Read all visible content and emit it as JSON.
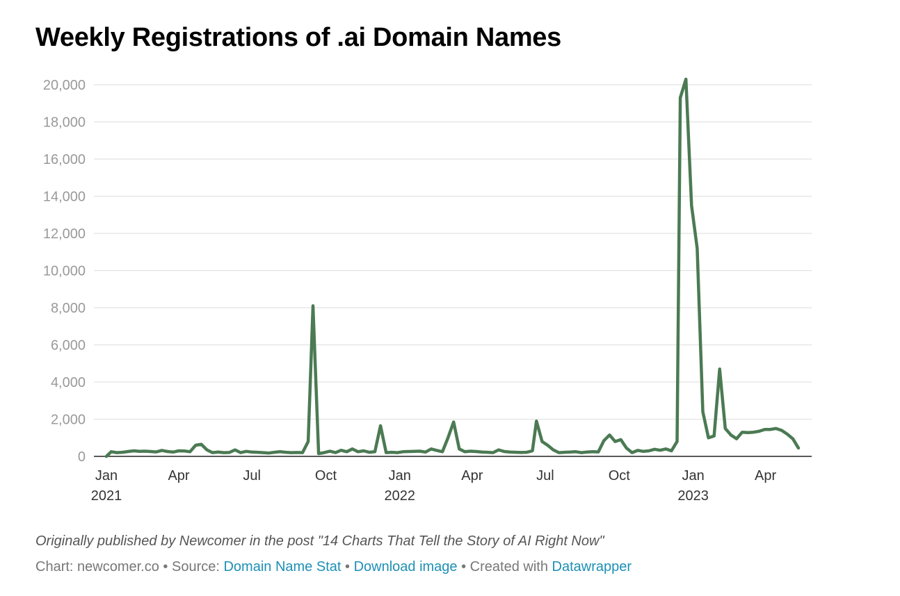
{
  "chart_data": {
    "type": "line",
    "title": "Weekly Registrations of .ai Domain Names",
    "xlabel": "",
    "ylabel": "",
    "ylim": [
      0,
      20000
    ],
    "grid": true,
    "line_color": "#4b7a53",
    "y_ticks": [
      {
        "value": 0,
        "label": "0"
      },
      {
        "value": 2000,
        "label": "2,000"
      },
      {
        "value": 4000,
        "label": "4,000"
      },
      {
        "value": 6000,
        "label": "6,000"
      },
      {
        "value": 8000,
        "label": "8,000"
      },
      {
        "value": 10000,
        "label": "10,000"
      },
      {
        "value": 12000,
        "label": "12,000"
      },
      {
        "value": 14000,
        "label": "14,000"
      },
      {
        "value": 16000,
        "label": "16,000"
      },
      {
        "value": 18000,
        "label": "18,000"
      },
      {
        "value": 20000,
        "label": "20,000"
      }
    ],
    "x_ticks": [
      {
        "date": "2021-01-01",
        "label": "Jan",
        "year": "2021"
      },
      {
        "date": "2021-04-01",
        "label": "Apr",
        "year": ""
      },
      {
        "date": "2021-07-01",
        "label": "Jul",
        "year": ""
      },
      {
        "date": "2021-10-01",
        "label": "Oct",
        "year": ""
      },
      {
        "date": "2022-01-01",
        "label": "Jan",
        "year": "2022"
      },
      {
        "date": "2022-04-01",
        "label": "Apr",
        "year": ""
      },
      {
        "date": "2022-07-01",
        "label": "Jul",
        "year": ""
      },
      {
        "date": "2022-10-01",
        "label": "Oct",
        "year": ""
      },
      {
        "date": "2023-01-01",
        "label": "Jan",
        "year": "2023"
      },
      {
        "date": "2023-04-01",
        "label": "Apr",
        "year": ""
      }
    ],
    "series": [
      {
        "points": [
          [
            "2021-01-01",
            0
          ],
          [
            "2021-01-07",
            250
          ],
          [
            "2021-01-14",
            200
          ],
          [
            "2021-01-21",
            220
          ],
          [
            "2021-01-28",
            260
          ],
          [
            "2021-02-04",
            300
          ],
          [
            "2021-02-11",
            270
          ],
          [
            "2021-02-18",
            280
          ],
          [
            "2021-02-25",
            260
          ],
          [
            "2021-03-04",
            240
          ],
          [
            "2021-03-11",
            320
          ],
          [
            "2021-03-18",
            260
          ],
          [
            "2021-03-25",
            230
          ],
          [
            "2021-04-01",
            300
          ],
          [
            "2021-04-08",
            290
          ],
          [
            "2021-04-15",
            250
          ],
          [
            "2021-04-22",
            600
          ],
          [
            "2021-04-29",
            650
          ],
          [
            "2021-05-06",
            350
          ],
          [
            "2021-05-13",
            200
          ],
          [
            "2021-05-20",
            230
          ],
          [
            "2021-05-27",
            200
          ],
          [
            "2021-06-03",
            210
          ],
          [
            "2021-06-10",
            350
          ],
          [
            "2021-06-17",
            200
          ],
          [
            "2021-06-24",
            270
          ],
          [
            "2021-07-01",
            230
          ],
          [
            "2021-07-08",
            220
          ],
          [
            "2021-07-15",
            200
          ],
          [
            "2021-07-22",
            180
          ],
          [
            "2021-07-29",
            220
          ],
          [
            "2021-08-05",
            250
          ],
          [
            "2021-08-12",
            220
          ],
          [
            "2021-08-19",
            200
          ],
          [
            "2021-08-26",
            210
          ],
          [
            "2021-09-02",
            200
          ],
          [
            "2021-09-09",
            800
          ],
          [
            "2021-09-15",
            8100
          ],
          [
            "2021-09-22",
            150
          ],
          [
            "2021-09-29",
            200
          ],
          [
            "2021-10-06",
            280
          ],
          [
            "2021-10-13",
            200
          ],
          [
            "2021-10-20",
            330
          ],
          [
            "2021-10-27",
            250
          ],
          [
            "2021-11-03",
            400
          ],
          [
            "2021-11-10",
            250
          ],
          [
            "2021-11-17",
            300
          ],
          [
            "2021-11-24",
            220
          ],
          [
            "2021-12-01",
            250
          ],
          [
            "2021-12-08",
            1650
          ],
          [
            "2021-12-15",
            200
          ],
          [
            "2021-12-22",
            220
          ],
          [
            "2021-12-29",
            200
          ],
          [
            "2022-01-05",
            250
          ],
          [
            "2022-01-12",
            260
          ],
          [
            "2022-01-19",
            270
          ],
          [
            "2022-01-26",
            280
          ],
          [
            "2022-02-02",
            230
          ],
          [
            "2022-02-09",
            400
          ],
          [
            "2022-02-16",
            320
          ],
          [
            "2022-02-23",
            250
          ],
          [
            "2022-03-02",
            1000
          ],
          [
            "2022-03-09",
            1850
          ],
          [
            "2022-03-16",
            400
          ],
          [
            "2022-03-23",
            250
          ],
          [
            "2022-03-30",
            280
          ],
          [
            "2022-04-06",
            260
          ],
          [
            "2022-04-13",
            230
          ],
          [
            "2022-04-20",
            220
          ],
          [
            "2022-04-27",
            200
          ],
          [
            "2022-05-04",
            350
          ],
          [
            "2022-05-11",
            260
          ],
          [
            "2022-05-18",
            230
          ],
          [
            "2022-05-25",
            220
          ],
          [
            "2022-06-01",
            210
          ],
          [
            "2022-06-08",
            220
          ],
          [
            "2022-06-15",
            300
          ],
          [
            "2022-06-20",
            1900
          ],
          [
            "2022-06-27",
            800
          ],
          [
            "2022-07-04",
            600
          ],
          [
            "2022-07-11",
            350
          ],
          [
            "2022-07-18",
            200
          ],
          [
            "2022-07-25",
            220
          ],
          [
            "2022-08-01",
            230
          ],
          [
            "2022-08-08",
            250
          ],
          [
            "2022-08-15",
            200
          ],
          [
            "2022-08-22",
            230
          ],
          [
            "2022-08-29",
            250
          ],
          [
            "2022-09-05",
            240
          ],
          [
            "2022-09-12",
            850
          ],
          [
            "2022-09-19",
            1150
          ],
          [
            "2022-09-26",
            800
          ],
          [
            "2022-10-03",
            900
          ],
          [
            "2022-10-10",
            450
          ],
          [
            "2022-10-17",
            200
          ],
          [
            "2022-10-24",
            320
          ],
          [
            "2022-10-31",
            270
          ],
          [
            "2022-11-07",
            300
          ],
          [
            "2022-11-14",
            380
          ],
          [
            "2022-11-21",
            330
          ],
          [
            "2022-11-28",
            400
          ],
          [
            "2022-12-05",
            300
          ],
          [
            "2022-12-12",
            800
          ],
          [
            "2022-12-16",
            19300
          ],
          [
            "2022-12-23",
            20300
          ],
          [
            "2022-12-30",
            13500
          ],
          [
            "2023-01-06",
            11200
          ],
          [
            "2023-01-13",
            2400
          ],
          [
            "2023-01-20",
            1000
          ],
          [
            "2023-01-27",
            1100
          ],
          [
            "2023-02-03",
            4700
          ],
          [
            "2023-02-10",
            1500
          ],
          [
            "2023-02-17",
            1150
          ],
          [
            "2023-02-24",
            950
          ],
          [
            "2023-03-03",
            1300
          ],
          [
            "2023-03-10",
            1280
          ],
          [
            "2023-03-17",
            1300
          ],
          [
            "2023-03-24",
            1350
          ],
          [
            "2023-03-31",
            1450
          ],
          [
            "2023-04-07",
            1450
          ],
          [
            "2023-04-14",
            1500
          ],
          [
            "2023-04-21",
            1400
          ],
          [
            "2023-04-28",
            1200
          ],
          [
            "2023-05-05",
            950
          ],
          [
            "2023-05-12",
            450
          ]
        ]
      }
    ]
  },
  "notes": "Originally published by Newcomer in the post \"14 Charts That Tell the Story of AI Right Now\"",
  "footer": {
    "chart_prefix": "Chart: newcomer.co",
    "separator": " • ",
    "source_prefix": "Source: ",
    "source_link": "Domain Name Stat",
    "download_link": "Download image",
    "created_prefix": "Created with ",
    "created_link": "Datawrapper"
  }
}
